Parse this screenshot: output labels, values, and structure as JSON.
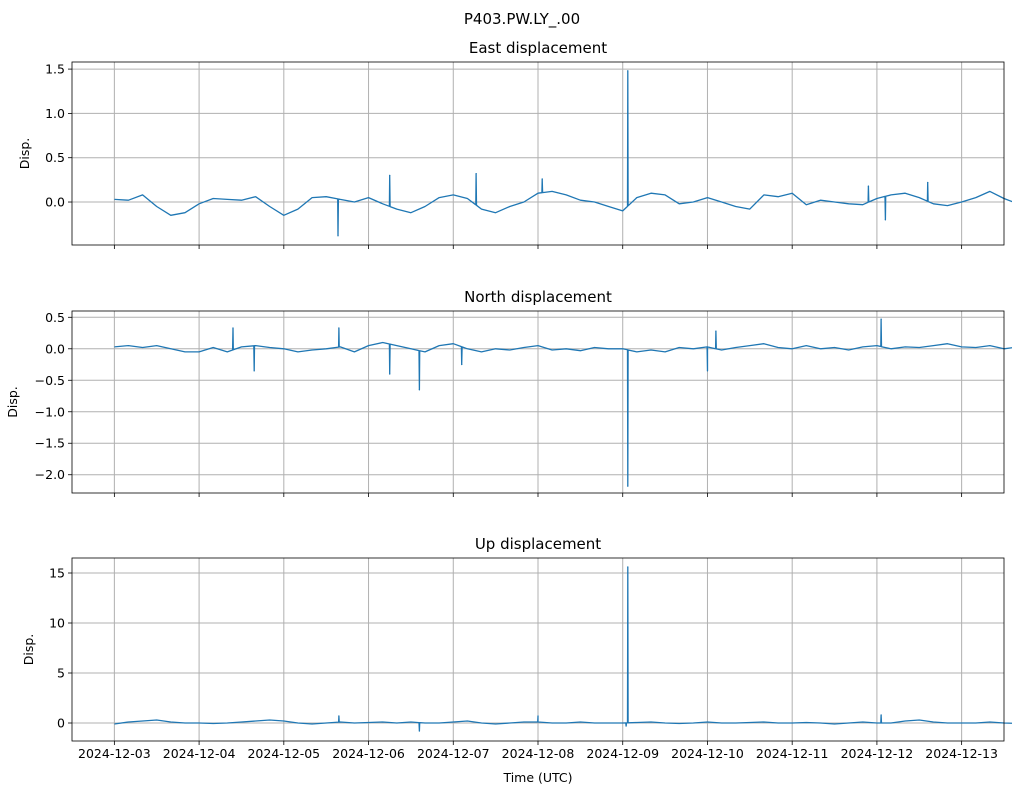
{
  "chart_data": {
    "type": "line",
    "suptitle": "P403.PW.LY_.00",
    "xlabel": "Time (UTC)",
    "x_unit": "days since 2024-12-03 00:00 UTC",
    "x_step_days": 0.1666667,
    "xlim": [
      -0.5,
      10.5
    ],
    "xticks": [
      0,
      1,
      2,
      3,
      4,
      5,
      6,
      7,
      8,
      9,
      10
    ],
    "xtick_labels": [
      "2024-12-03",
      "2024-12-04",
      "2024-12-05",
      "2024-12-06",
      "2024-12-07",
      "2024-12-08",
      "2024-12-09",
      "2024-12-10",
      "2024-12-11",
      "2024-12-12",
      "2024-12-13"
    ],
    "grid": true,
    "color": "#1f77b4",
    "panels": [
      {
        "title": "East displacement",
        "ylabel": "Disp.",
        "ylim": [
          -0.485,
          1.58
        ],
        "yticks": [
          0.0,
          0.5,
          1.0,
          1.5
        ],
        "ytick_labels": [
          "0.0",
          "0.5",
          "1.0",
          "1.5"
        ],
        "values": [
          0.03,
          0.02,
          0.08,
          -0.05,
          -0.15,
          -0.12,
          -0.02,
          0.04,
          0.03,
          0.02,
          0.06,
          -0.05,
          -0.15,
          -0.08,
          0.05,
          0.06,
          0.03,
          0.0,
          0.05,
          -0.02,
          -0.08,
          -0.12,
          -0.05,
          0.05,
          0.08,
          0.04,
          -0.08,
          -0.12,
          -0.05,
          0.0,
          0.1,
          0.12,
          0.08,
          0.02,
          0.0,
          -0.05,
          -0.1,
          0.05,
          0.1,
          0.08,
          -0.02,
          0.0,
          0.05,
          0.0,
          -0.05,
          -0.08,
          0.08,
          0.06,
          0.1,
          -0.03,
          0.02,
          0.0,
          -0.02,
          -0.03,
          0.04,
          0.08,
          0.1,
          0.05,
          -0.02,
          -0.04,
          0.0,
          0.05,
          0.12,
          0.04,
          -0.02,
          0.02,
          0.0,
          -0.05,
          0.05,
          0.08,
          0.1
        ],
        "spikes": [
          [
            2.64,
            -0.38
          ],
          [
            3.25,
            0.3
          ],
          [
            4.27,
            0.32
          ],
          [
            5.05,
            0.26
          ],
          [
            6.06,
            1.48
          ],
          [
            8.9,
            0.18
          ],
          [
            9.1,
            -0.2
          ],
          [
            9.6,
            0.22
          ]
        ]
      },
      {
        "title": "North displacement",
        "ylabel": "Disp.",
        "ylim": [
          -2.29,
          0.6
        ],
        "yticks": [
          -2.0,
          -1.5,
          -1.0,
          -0.5,
          0.0,
          0.5
        ],
        "ytick_labels": [
          "−2.0",
          "−1.5",
          "−1.0",
          "−0.5",
          "0.0",
          "0.5"
        ],
        "values": [
          0.03,
          0.05,
          0.02,
          0.05,
          0.0,
          -0.05,
          -0.05,
          0.02,
          -0.05,
          0.03,
          0.05,
          0.02,
          0.0,
          -0.05,
          -0.02,
          0.0,
          0.03,
          -0.05,
          0.05,
          0.1,
          0.05,
          0.0,
          -0.05,
          0.05,
          0.08,
          0.0,
          -0.05,
          0.0,
          -0.02,
          0.02,
          0.05,
          -0.02,
          0.0,
          -0.03,
          0.02,
          0.0,
          0.0,
          -0.05,
          -0.02,
          -0.05,
          0.02,
          0.0,
          0.03,
          -0.02,
          0.02,
          0.05,
          0.08,
          0.02,
          0.0,
          0.05,
          0.0,
          0.02,
          -0.02,
          0.03,
          0.05,
          0.0,
          0.03,
          0.02,
          0.05,
          0.08,
          0.03,
          0.02,
          0.05,
          0.0,
          0.03,
          0.02,
          0.05,
          0.1,
          0.0,
          0.05,
          0.05
        ],
        "spikes": [
          [
            1.4,
            0.33
          ],
          [
            1.65,
            -0.35
          ],
          [
            2.65,
            0.33
          ],
          [
            3.25,
            -0.4
          ],
          [
            3.6,
            -0.65
          ],
          [
            4.1,
            -0.25
          ],
          [
            6.06,
            -2.18
          ],
          [
            7.0,
            -0.35
          ],
          [
            7.1,
            0.28
          ],
          [
            9.05,
            0.47
          ]
        ]
      },
      {
        "title": "Up displacement",
        "ylabel": "Disp.",
        "ylim": [
          -1.8,
          16.5
        ],
        "yticks": [
          0,
          5,
          10,
          15
        ],
        "ytick_labels": [
          "0",
          "5",
          "10",
          "15"
        ],
        "values": [
          -0.1,
          0.1,
          0.2,
          0.3,
          0.1,
          0.0,
          0.0,
          -0.05,
          0.0,
          0.1,
          0.2,
          0.3,
          0.2,
          0.0,
          -0.1,
          0.0,
          0.1,
          0.0,
          0.05,
          0.1,
          0.0,
          0.1,
          0.0,
          0.0,
          0.1,
          0.2,
          0.0,
          -0.1,
          0.0,
          0.1,
          0.1,
          0.0,
          0.0,
          0.1,
          0.0,
          0.0,
          0.0,
          0.05,
          0.1,
          0.0,
          -0.05,
          0.0,
          0.1,
          0.0,
          0.0,
          0.05,
          0.1,
          0.0,
          0.0,
          0.05,
          0.0,
          -0.1,
          0.0,
          0.1,
          0.0,
          0.0,
          0.2,
          0.3,
          0.1,
          0.0,
          0.0,
          0.0,
          0.1,
          0.0,
          -0.05,
          0.0,
          0.05,
          0.0,
          0.05,
          0.0,
          0.05
        ],
        "spikes": [
          [
            2.65,
            0.7
          ],
          [
            3.6,
            -0.8
          ],
          [
            5.0,
            0.7
          ],
          [
            6.04,
            -0.3
          ],
          [
            6.06,
            15.6
          ],
          [
            9.05,
            0.8
          ]
        ]
      }
    ]
  }
}
